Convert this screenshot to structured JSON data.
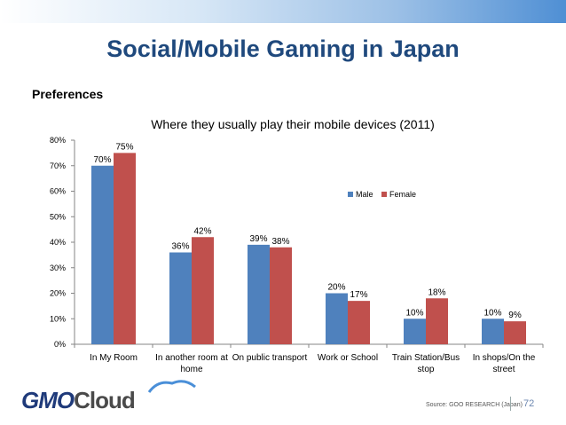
{
  "slide": {
    "title": "Social/Mobile Gaming in Japan",
    "section": "Preferences",
    "source": "Source: GOO RESEARCH (Japan)",
    "page_number": "72",
    "logo_primary": "GMO",
    "logo_secondary": "Cloud"
  },
  "colors": {
    "male": "#4f81bd",
    "female": "#c0504d",
    "title": "#1f497d"
  },
  "chart_data": {
    "type": "bar",
    "title": "Where they usually play their mobile devices (2011)",
    "categories": [
      [
        "In My Room"
      ],
      [
        "In another room at",
        "home"
      ],
      [
        "On public transport"
      ],
      [
        "Work or School"
      ],
      [
        "Train Station/Bus",
        "stop"
      ],
      [
        "In shops/On the",
        "street"
      ]
    ],
    "series": [
      {
        "name": "Male",
        "values": [
          70,
          36,
          39,
          20,
          10,
          10
        ],
        "labels": [
          "70%",
          "36%",
          "39%",
          "20%",
          "10%",
          "10%"
        ]
      },
      {
        "name": "Female",
        "values": [
          75,
          42,
          38,
          17,
          18,
          9
        ],
        "labels": [
          "75%",
          "42%",
          "38%",
          "17%",
          "18%",
          "9%"
        ]
      }
    ],
    "ylim": [
      0,
      80
    ],
    "yticks": [
      "0%",
      "10%",
      "20%",
      "30%",
      "40%",
      "50%",
      "60%",
      "70%",
      "80%"
    ],
    "grid": false,
    "legend": "right"
  }
}
